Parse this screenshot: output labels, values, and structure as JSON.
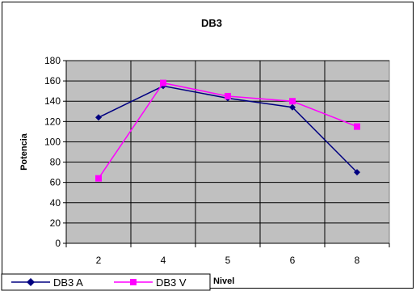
{
  "chart_data": {
    "type": "line",
    "title": "DB3",
    "xlabel": "Nivel",
    "ylabel": "Potencia",
    "categories": [
      "2",
      "4",
      "5",
      "6",
      "8"
    ],
    "ylim": [
      0,
      180
    ],
    "yticks": [
      0,
      20,
      40,
      60,
      80,
      100,
      120,
      140,
      160,
      180
    ],
    "grid": true,
    "plot_background": "#C0C0C0",
    "series": [
      {
        "name": "DB3 A",
        "color": "#000080",
        "marker": "diamond",
        "values": [
          124,
          155,
          143,
          134,
          70
        ]
      },
      {
        "name": "DB3 V",
        "color": "#FF00FF",
        "marker": "square",
        "values": [
          64,
          158,
          145,
          140,
          115
        ]
      }
    ],
    "legend": "bottom-left"
  }
}
